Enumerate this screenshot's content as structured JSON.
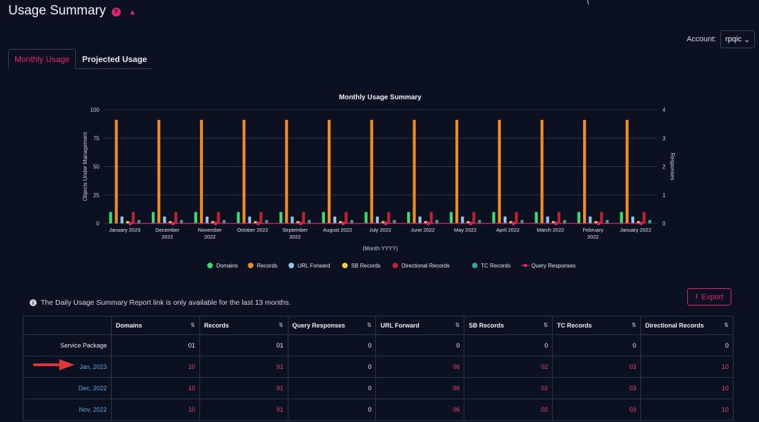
{
  "header": {
    "title": "Usage Summary",
    "help_icon": "question-circle-icon",
    "home_icon": "home-icon"
  },
  "account": {
    "label": "Account:",
    "value": "rpqic"
  },
  "tabs": [
    {
      "label": "Monthly Usage",
      "active": true
    },
    {
      "label": "Projected Usage",
      "active": false
    }
  ],
  "chart_data": {
    "type": "bar",
    "title": "Monthly Usage Summary",
    "xlabel": "(Month YYYY)",
    "ylabel": "Objects Under Management",
    "y2label": "Responses",
    "ylim": [
      0,
      100
    ],
    "yticks": [
      0,
      25,
      50,
      75,
      100
    ],
    "y2lim": [
      0,
      4
    ],
    "y2ticks": [
      0,
      1,
      2,
      3,
      4
    ],
    "categories": [
      "January 2023",
      "December 2022",
      "November 2022",
      "October 2022",
      "September 2022",
      "August 2022",
      "July 2022",
      "June 2022",
      "May 2022",
      "April 2022",
      "March 2022",
      "February 2022",
      "January 2022"
    ],
    "series": [
      {
        "name": "Domains",
        "color": "#3ddc6f",
        "values": [
          10,
          10,
          10,
          10,
          10,
          10,
          10,
          10,
          10,
          10,
          10,
          10,
          10
        ]
      },
      {
        "name": "Records",
        "color": "#f58a1f",
        "values": [
          91,
          91,
          91,
          91,
          91,
          91,
          91,
          91,
          91,
          91,
          91,
          91,
          91
        ]
      },
      {
        "name": "URL Forward",
        "color": "#8fc6f2",
        "values": [
          6,
          6,
          6,
          6,
          6,
          6,
          6,
          6,
          6,
          6,
          6,
          6,
          6
        ]
      },
      {
        "name": "SB Records",
        "color": "#f5d33f",
        "values": [
          2,
          2,
          2,
          2,
          2,
          2,
          2,
          2,
          2,
          2,
          2,
          2,
          2
        ]
      },
      {
        "name": "Directional Records",
        "color": "#c4202d",
        "values": [
          10,
          10,
          10,
          10,
          10,
          10,
          10,
          10,
          10,
          10,
          10,
          10,
          10
        ]
      },
      {
        "name": "TC Records",
        "color": "#3aa38f",
        "values": [
          3,
          3,
          3,
          3,
          3,
          3,
          3,
          3,
          3,
          3,
          3,
          3,
          3
        ]
      },
      {
        "name": "Query Responses",
        "color": "#e0256e",
        "type": "line",
        "axis": "right",
        "values": [
          0,
          0,
          0,
          0,
          0,
          0,
          0,
          0,
          0,
          0,
          0,
          0,
          0
        ]
      }
    ],
    "legend_position": "bottom",
    "grid": true
  },
  "info": {
    "text": "The Daily Usage Summary Report link is only available for the last 13 months."
  },
  "export": {
    "label": "Export"
  },
  "table": {
    "columns": [
      "",
      "Domains",
      "Records",
      "Query Responses",
      "URL Forward",
      "SB Records",
      "TC Records",
      "Directional Records"
    ],
    "rows": [
      {
        "label": "Service Package",
        "values": [
          "01",
          "01",
          "0",
          "0",
          "0",
          "0",
          "0"
        ]
      },
      {
        "label": "Jan, 2023",
        "values": [
          "10",
          "91",
          "0",
          "06",
          "02",
          "03",
          "10"
        ]
      },
      {
        "label": "Dec, 2022",
        "values": [
          "10",
          "91",
          "0",
          "06",
          "02",
          "03",
          "10"
        ]
      },
      {
        "label": "Nov, 2022",
        "values": [
          "10",
          "91",
          "0",
          "06",
          "02",
          "03",
          "10"
        ]
      }
    ]
  }
}
